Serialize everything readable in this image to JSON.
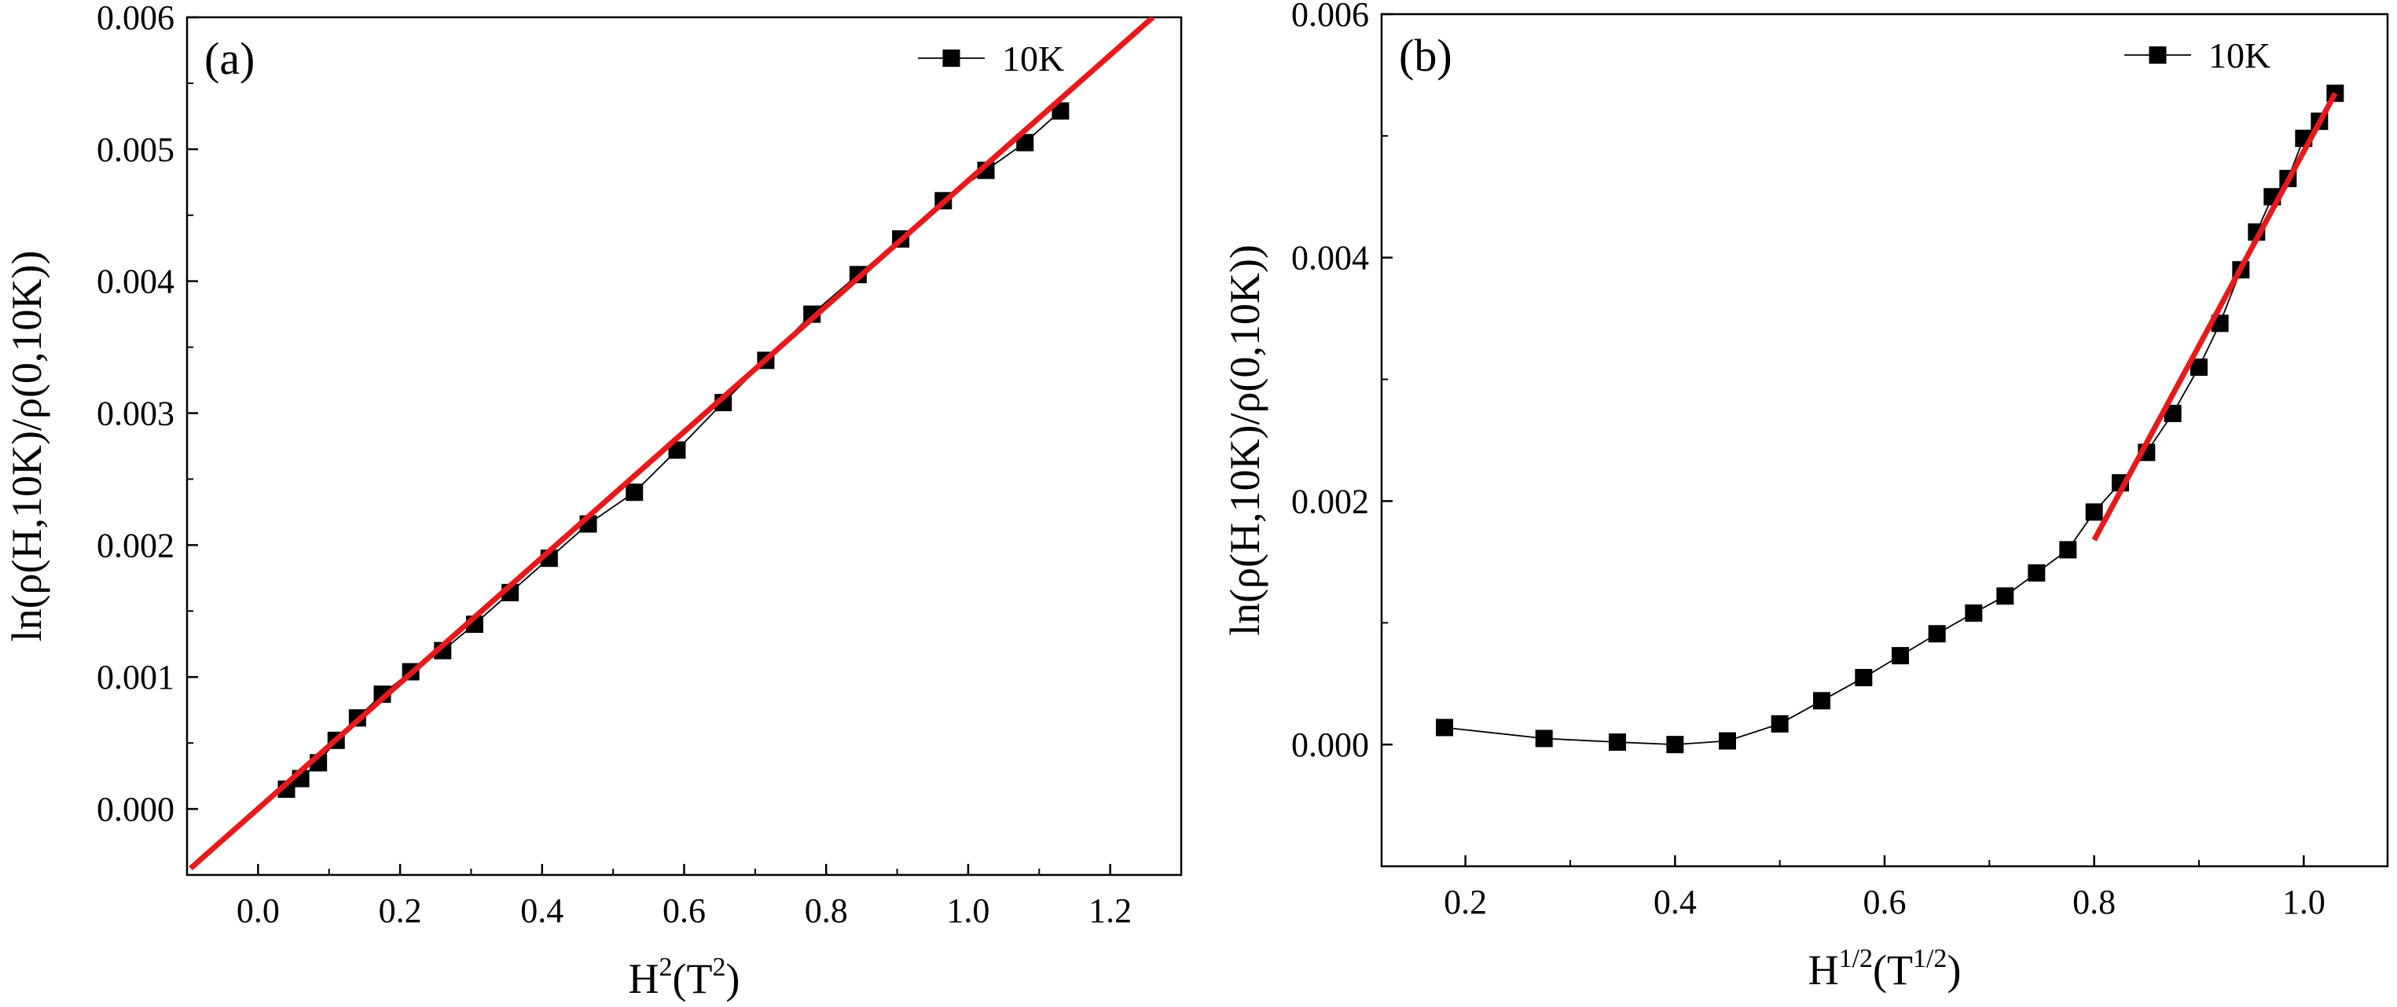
{
  "chart_data": [
    {
      "panel_label": "(a)",
      "type": "scatter",
      "xlabel": {
        "base": "H",
        "sup": "2",
        "unit_open": "(T",
        "unit_sup": "2",
        "unit_close": ")"
      },
      "ylabel": "ln(ρ(H,10K)/ρ(0,10K))",
      "xlim": [
        -0.1,
        1.3
      ],
      "ylim": [
        -0.0005,
        0.006
      ],
      "xticks": [
        0.0,
        0.2,
        0.4,
        0.6,
        0.8,
        1.0,
        1.2
      ],
      "xtick_labels": [
        "0.0",
        "0.2",
        "0.4",
        "0.6",
        "0.8",
        "1.0",
        "1.2"
      ],
      "yticks": [
        0.0,
        0.001,
        0.002,
        0.003,
        0.004,
        0.005,
        0.006
      ],
      "ytick_labels": [
        "0.000",
        "0.001",
        "0.002",
        "0.003",
        "0.004",
        "0.005",
        "0.006"
      ],
      "legend": {
        "label": "10K",
        "position": "top-right"
      },
      "series": [
        {
          "name": "10K",
          "marker": "square",
          "color": "#000000",
          "x": [
            0.04,
            0.06,
            0.085,
            0.11,
            0.14,
            0.175,
            0.215,
            0.26,
            0.305,
            0.355,
            0.41,
            0.465,
            0.53,
            0.59,
            0.655,
            0.715,
            0.78,
            0.845,
            0.905,
            0.965,
            1.025,
            1.08,
            1.13
          ],
          "y": [
            0.00015,
            0.00023,
            0.00035,
            0.00052,
            0.00069,
            0.00087,
            0.00104,
            0.0012,
            0.0014,
            0.00164,
            0.0019,
            0.00216,
            0.0024,
            0.00272,
            0.00308,
            0.0034,
            0.00375,
            0.00405,
            0.00432,
            0.00461,
            0.00484,
            0.00505,
            0.00529
          ]
        }
      ],
      "fit_line": {
        "color": "#e8191b",
        "x": [
          -0.095,
          1.26
        ],
        "y": [
          -0.00045,
          0.006
        ]
      }
    },
    {
      "panel_label": "(b)",
      "type": "scatter",
      "xlabel": {
        "base": "H",
        "sup": "1/2",
        "unit_open": "(T",
        "unit_sup": "1/2",
        "unit_close": ")"
      },
      "ylabel": "ln(ρ(H,10K)/ρ(0,10K))",
      "xlim": [
        0.12,
        1.08
      ],
      "ylim": [
        -0.001,
        0.006
      ],
      "xticks": [
        0.2,
        0.4,
        0.6,
        0.8,
        1.0
      ],
      "xtick_labels": [
        "0.2",
        "0.4",
        "0.6",
        "0.8",
        "1.0"
      ],
      "yticks": [
        0.0,
        0.002,
        0.004,
        0.006
      ],
      "ytick_labels": [
        "0.000",
        "0.002",
        "0.004",
        "0.006"
      ],
      "legend": {
        "label": "10K",
        "position": "top-right"
      },
      "series": [
        {
          "name": "10K",
          "marker": "square",
          "color": "#000000",
          "x": [
            0.18,
            0.275,
            0.345,
            0.4,
            0.45,
            0.5,
            0.54,
            0.58,
            0.615,
            0.65,
            0.685,
            0.715,
            0.745,
            0.775,
            0.8,
            0.825,
            0.85,
            0.875,
            0.9,
            0.92,
            0.94,
            0.955,
            0.97,
            0.985,
            1.0,
            1.015,
            1.03
          ],
          "y": [
            0.00014,
            5e-05,
            2e-05,
            0.0,
            3e-05,
            0.00017,
            0.00036,
            0.00055,
            0.00073,
            0.00091,
            0.00108,
            0.00122,
            0.00141,
            0.0016,
            0.00191,
            0.00215,
            0.0024,
            0.00272,
            0.0031,
            0.00346,
            0.0039,
            0.00421,
            0.0045,
            0.00465,
            0.00498,
            0.00512,
            0.00535
          ]
        }
      ],
      "fit_line": {
        "color": "#e8191b",
        "x": [
          0.8,
          1.03
        ],
        "y": [
          0.00168,
          0.00535
        ]
      }
    }
  ]
}
